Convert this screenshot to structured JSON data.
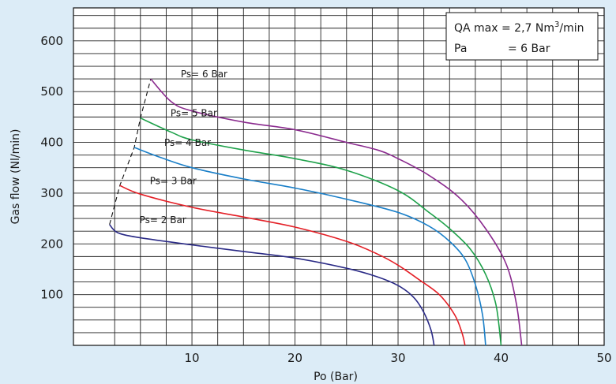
{
  "chart_data": {
    "type": "line",
    "xlabel": "Po  (Bar)",
    "ylabel": "Gas flow (Nl/min)",
    "xlim": [
      -1.5,
      50
    ],
    "ylim": [
      0,
      665
    ],
    "x_ticks": [
      "10",
      "20",
      "30",
      "40",
      "50"
    ],
    "y_ticks": [
      "100",
      "200",
      "300",
      "400",
      "500",
      "600"
    ],
    "grid": true,
    "legend": {
      "placement": "top-right",
      "line1_prefix": "QA max = 2,7 Nm",
      "line1_sup": "3",
      "line1_suffix": "/min",
      "line2_name": "Pa",
      "line2_value": "= 6 Bar"
    },
    "series": [
      {
        "name": "Ps= 2 Bar",
        "color": "#2a2a86",
        "points": [
          [
            2.0,
            238
          ],
          [
            2.8,
            222
          ],
          [
            5,
            212
          ],
          [
            10,
            198
          ],
          [
            15,
            185
          ],
          [
            20,
            172
          ],
          [
            25,
            152
          ],
          [
            28,
            135
          ],
          [
            30,
            118
          ],
          [
            31.5,
            95
          ],
          [
            32.5,
            65
          ],
          [
            33.2,
            30
          ],
          [
            33.5,
            0
          ]
        ]
      },
      {
        "name": "Ps= 3 Bar",
        "color": "#e41f26",
        "points": [
          [
            3.0,
            315
          ],
          [
            5,
            298
          ],
          [
            10,
            272
          ],
          [
            15,
            253
          ],
          [
            20,
            233
          ],
          [
            25,
            205
          ],
          [
            28,
            180
          ],
          [
            30,
            158
          ],
          [
            32,
            130
          ],
          [
            34,
            100
          ],
          [
            35.5,
            60
          ],
          [
            36.2,
            25
          ],
          [
            36.5,
            0
          ]
        ]
      },
      {
        "name": "Ps= 4 Bar",
        "color": "#1a7fc8",
        "points": [
          [
            4.4,
            390
          ],
          [
            7,
            370
          ],
          [
            10,
            350
          ],
          [
            15,
            328
          ],
          [
            20,
            310
          ],
          [
            25,
            288
          ],
          [
            30,
            262
          ],
          [
            33,
            235
          ],
          [
            35,
            205
          ],
          [
            36.5,
            170
          ],
          [
            37.5,
            120
          ],
          [
            38.2,
            60
          ],
          [
            38.5,
            0
          ]
        ]
      },
      {
        "name": "Ps= 5 Bar",
        "color": "#1ea14a",
        "points": [
          [
            5.0,
            448
          ],
          [
            8,
            420
          ],
          [
            10,
            405
          ],
          [
            15,
            385
          ],
          [
            20,
            368
          ],
          [
            25,
            345
          ],
          [
            30,
            305
          ],
          [
            33,
            262
          ],
          [
            35,
            230
          ],
          [
            37,
            190
          ],
          [
            38.5,
            140
          ],
          [
            39.5,
            80
          ],
          [
            40.0,
            0
          ]
        ]
      },
      {
        "name": "Ps= 6 Bar",
        "color": "#8a2a8e",
        "points": [
          [
            6.0,
            525
          ],
          [
            8,
            480
          ],
          [
            10,
            462
          ],
          [
            15,
            440
          ],
          [
            20,
            425
          ],
          [
            25,
            400
          ],
          [
            28,
            385
          ],
          [
            30,
            368
          ],
          [
            33,
            335
          ],
          [
            36,
            290
          ],
          [
            38.5,
            230
          ],
          [
            40.5,
            160
          ],
          [
            41.5,
            80
          ],
          [
            42.0,
            0
          ]
        ]
      }
    ],
    "envelope_points": [
      [
        2.0,
        238
      ],
      [
        3.0,
        315
      ],
      [
        4.4,
        390
      ],
      [
        5.0,
        448
      ],
      [
        6.0,
        525
      ]
    ]
  }
}
